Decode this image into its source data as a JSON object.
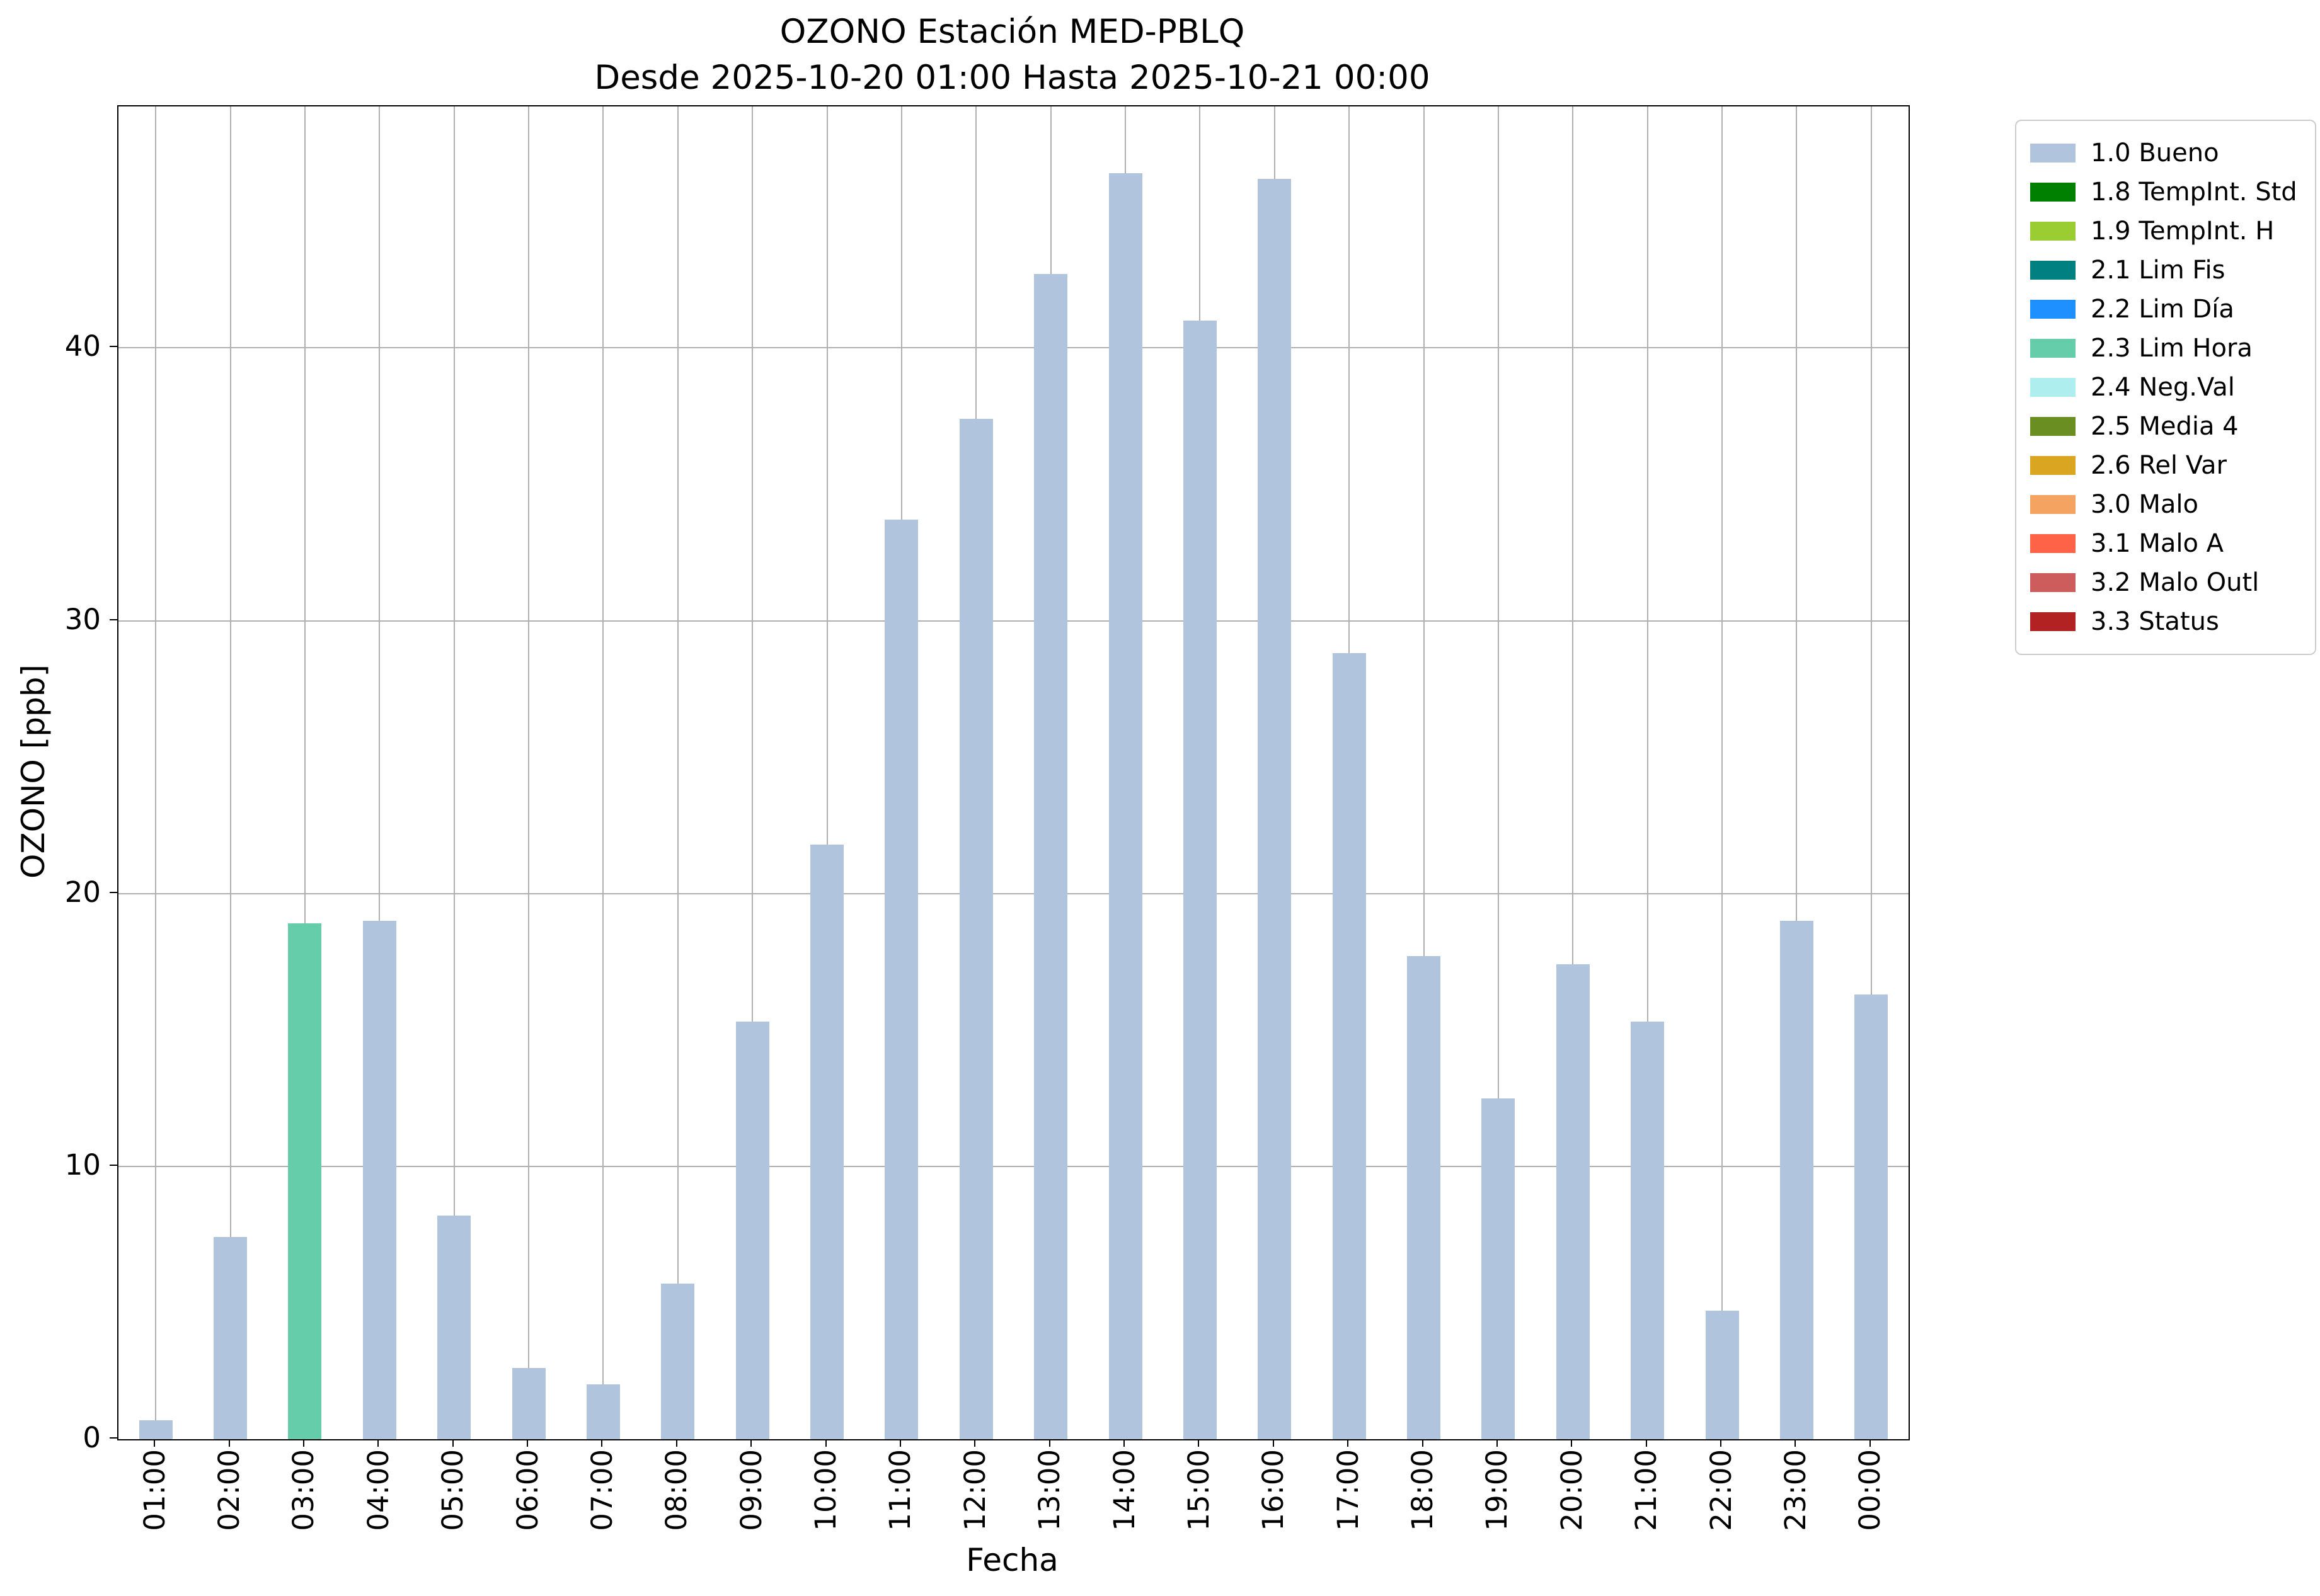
{
  "chart_data": {
    "type": "bar",
    "title": "OZONO Estación MED-PBLQ",
    "subtitle": "Desde 2025-10-20 01:00 Hasta 2025-10-21 00:00",
    "xlabel": "Fecha",
    "ylabel": "OZONO [ppb]",
    "ylim": [
      0,
      48.85
    ],
    "yticks": [
      0,
      10,
      20,
      30,
      40
    ],
    "grid": true,
    "legend_position": "outside-upper-right",
    "categories": [
      "01:00",
      "02:00",
      "03:00",
      "04:00",
      "05:00",
      "06:00",
      "07:00",
      "08:00",
      "09:00",
      "10:00",
      "11:00",
      "12:00",
      "13:00",
      "14:00",
      "15:00",
      "16:00",
      "17:00",
      "18:00",
      "19:00",
      "20:00",
      "21:00",
      "22:00",
      "23:00",
      "00:00"
    ],
    "values": [
      0.7,
      7.4,
      18.9,
      19.0,
      8.2,
      2.6,
      2.0,
      5.7,
      15.3,
      21.8,
      33.7,
      37.4,
      42.7,
      46.4,
      41.0,
      46.2,
      28.8,
      17.7,
      12.5,
      17.4,
      15.3,
      4.7,
      19.0,
      16.3
    ],
    "bar_status": [
      "1.0 Bueno",
      "1.0 Bueno",
      "2.3 Lim Hora",
      "1.0 Bueno",
      "1.0 Bueno",
      "1.0 Bueno",
      "1.0 Bueno",
      "1.0 Bueno",
      "1.0 Bueno",
      "1.0 Bueno",
      "1.0 Bueno",
      "1.0 Bueno",
      "1.0 Bueno",
      "1.0 Bueno",
      "1.0 Bueno",
      "1.0 Bueno",
      "1.0 Bueno",
      "1.0 Bueno",
      "1.0 Bueno",
      "1.0 Bueno",
      "1.0 Bueno",
      "1.0 Bueno",
      "1.0 Bueno",
      "1.0 Bueno"
    ],
    "legend": [
      {
        "label": "1.0 Bueno",
        "color": "#b0c4de"
      },
      {
        "label": "1.8 TempInt. Std",
        "color": "#008000"
      },
      {
        "label": "1.9 TempInt. H",
        "color": "#9acd32"
      },
      {
        "label": "2.1 Lim Fis",
        "color": "#008080"
      },
      {
        "label": "2.2 Lim Día",
        "color": "#1e90ff"
      },
      {
        "label": "2.3 Lim Hora",
        "color": "#66cdaa"
      },
      {
        "label": "2.4 Neg.Val",
        "color": "#afeeee"
      },
      {
        "label": "2.5 Media 4",
        "color": "#6b8e23"
      },
      {
        "label": "2.6 Rel Var",
        "color": "#daa520"
      },
      {
        "label": "3.0 Malo",
        "color": "#f4a460"
      },
      {
        "label": "3.1 Malo A",
        "color": "#ff6347"
      },
      {
        "label": "3.2 Malo Outl",
        "color": "#cd5c5c"
      },
      {
        "label": "3.3 Status",
        "color": "#b22222"
      }
    ]
  }
}
